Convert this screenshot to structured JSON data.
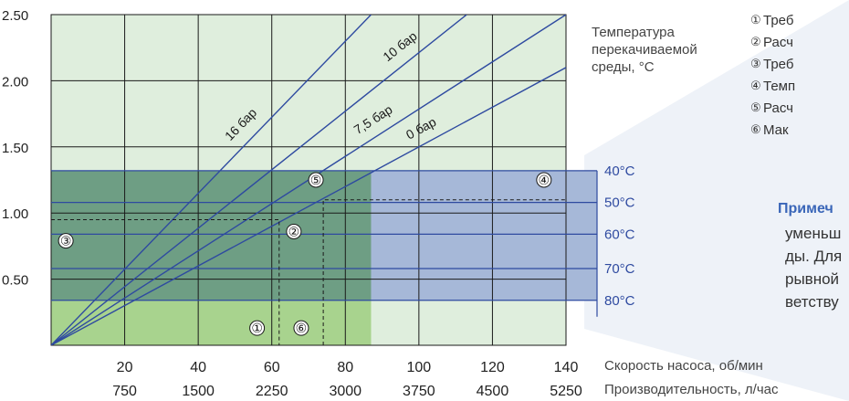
{
  "chart_data": {
    "type": "line",
    "xlabel_rpm": "Скорость насоса, об/мин",
    "xlabel_flow": "Производительность, л/час",
    "temperature_caption": [
      "Температура",
      "перекачиваемой",
      "среды, °C"
    ],
    "x_ticks_rpm": [
      "20",
      "40",
      "60",
      "80",
      "100",
      "120",
      "140"
    ],
    "x_ticks_flow": [
      "750",
      "1500",
      "2250",
      "3000",
      "3750",
      "4500",
      "5250"
    ],
    "y_ticks": [
      "0.50",
      "1.00",
      "1.50",
      "2.00",
      "2.50"
    ],
    "xlim_rpm": [
      0,
      140
    ],
    "ylim": [
      0,
      2.5
    ],
    "grid": true,
    "series": [
      {
        "name": "16 бар",
        "x": [
          0,
          87
        ],
        "y": [
          0,
          2.5
        ]
      },
      {
        "name": "10 бар",
        "x": [
          0,
          113
        ],
        "y": [
          0,
          2.5
        ]
      },
      {
        "name": "7,5 бар",
        "x": [
          0,
          140
        ],
        "y": [
          0,
          2.5
        ]
      },
      {
        "name": "0 бар",
        "x": [
          0,
          140
        ],
        "y": [
          0,
          2.1
        ]
      }
    ],
    "temperature_levels": [
      {
        "label": "40°C",
        "y": 1.32
      },
      {
        "label": "50°C",
        "y": 1.08
      },
      {
        "label": "60°C",
        "y": 0.84
      },
      {
        "label": "70°C",
        "y": 0.58
      },
      {
        "label": "80°C",
        "y": 0.34
      }
    ],
    "markers": [
      {
        "label": "①",
        "x": 56,
        "y": 0.13
      },
      {
        "label": "②",
        "x": 66,
        "y": 0.86
      },
      {
        "label": "③",
        "x": 4,
        "y": 0.79
      },
      {
        "label": "④",
        "x": 134,
        "y": 1.25
      },
      {
        "label": "⑤",
        "x": 72,
        "y": 1.25
      },
      {
        "label": "⑥",
        "x": 68,
        "y": 0.13
      }
    ],
    "dashed_guides": [
      {
        "x": [
          0,
          62,
          62
        ],
        "y": [
          0.95,
          0.95,
          0
        ]
      },
      {
        "x": [
          74,
          74,
          140
        ],
        "y": [
          0,
          1.1,
          1.1
        ]
      }
    ],
    "colors": {
      "light_background": "#dfeedd",
      "dark_band": "#6e9e84",
      "light_green_zone": "#a8d38e",
      "blue_band": "#a6b8d8",
      "line": "#2e4aa0",
      "temp_label": "#2e4aa0"
    }
  },
  "legend": {
    "items": [
      {
        "num": "①",
        "text": "Треб"
      },
      {
        "num": "②",
        "text": "Расч"
      },
      {
        "num": "③",
        "text": "Треб"
      },
      {
        "num": "④",
        "text": "Темп"
      },
      {
        "num": "⑤",
        "text": "Расч"
      },
      {
        "num": "⑥",
        "text": "Мак"
      }
    ],
    "note_title": "Примеч",
    "note_lines": [
      "уменьш",
      "ды. Для",
      "рывной",
      "ветству"
    ]
  }
}
